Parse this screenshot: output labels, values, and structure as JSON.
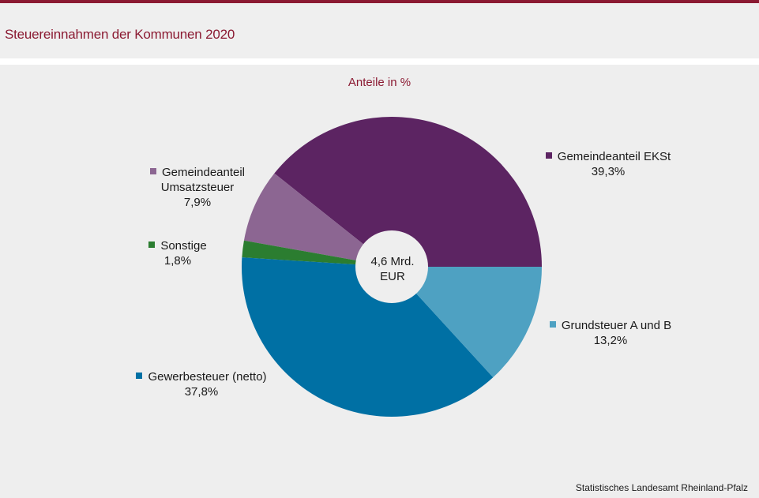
{
  "header": {
    "title": "Steuereinnahmen der Kommunen 2020"
  },
  "chart_data": {
    "type": "pie",
    "subtitle": "Anteile in %",
    "center_label": [
      "4,6 Mrd.",
      "EUR"
    ],
    "slices": [
      {
        "name": "Gemeindeanteil EKSt",
        "name_lines": [
          "Gemeindeanteil  EKSt"
        ],
        "value": 39.3,
        "value_label": "39,3%",
        "color": "#5c2462"
      },
      {
        "name": "Grundsteuer A und B",
        "name_lines": [
          "Grundsteuer  A und  B"
        ],
        "value": 13.2,
        "value_label": "13,2%",
        "color": "#4ea1c2"
      },
      {
        "name": "Gewerbesteuer (netto)",
        "name_lines": [
          "Gewerbesteuer  (netto)"
        ],
        "value": 37.8,
        "value_label": "37,8%",
        "color": "#0070a4"
      },
      {
        "name": "Sonstige",
        "name_lines": [
          "Sonstige"
        ],
        "value": 1.8,
        "value_label": "1,8%",
        "color": "#2b7d30"
      },
      {
        "name": "Gemeindeanteil Umsatzsteuer",
        "name_lines": [
          "Gemeindeanteil",
          "Umsatzsteuer"
        ],
        "value": 7.9,
        "value_label": "7,9%",
        "color": "#8c6692"
      }
    ]
  },
  "footer": {
    "source": "Statistisches Landesamt  Rheinland-Pfalz"
  }
}
